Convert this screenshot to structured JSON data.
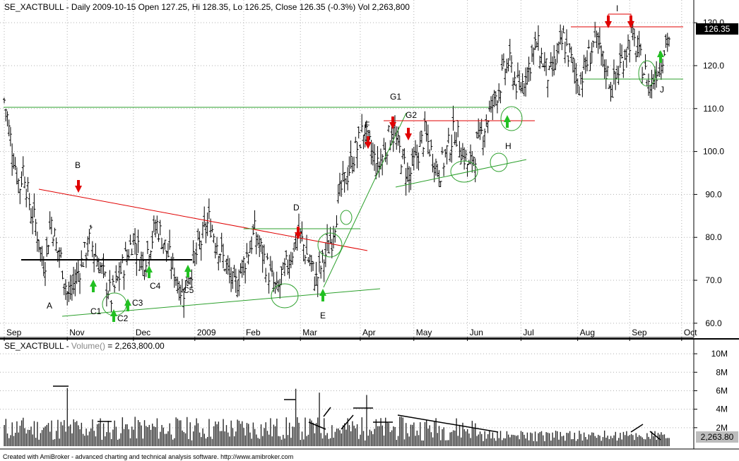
{
  "header": {
    "price_title": "SE_XACTBULL - Daily 2009-10-15 Open 127.25, Hi 128.35, Lo 126.25, Close 126.35 (-0.3%) Vol 2,263,800",
    "volume_title_prefix": "SE_XACTBULL - ",
    "volume_title_func": "Volume()",
    "volume_title_suffix": " = 2,263,800.00"
  },
  "price_badge": "126.35",
  "volume_badge": "2,263.80",
  "footer": "Created with AmiBroker - advanced charting and technical analysis software. http://www.amibroker.com",
  "colors": {
    "bars": "#000000",
    "support": "#2ca02c",
    "resistance": "#e00000",
    "arrow_up": "#22c022",
    "arrow_down": "#e00000",
    "volume_bars": "#2a2a2a",
    "grid": "#b0b0b0"
  },
  "chart_data": [
    {
      "type": "ohlc",
      "symbol": "SE_XACTBULL",
      "ylim": [
        58,
        132
      ],
      "y_ticks": [
        "130.0",
        "120.0",
        "110.0",
        "100.0",
        "90.0",
        "80.0",
        "70.0",
        "60.0"
      ],
      "y_tick_values": [
        130,
        120,
        110,
        100,
        90,
        80,
        70,
        60
      ],
      "x_tick_labels": [
        "Sep",
        "Nov",
        "Dec",
        "2009",
        "Feb",
        "Mar",
        "Apr",
        "May",
        "Jun",
        "Jul",
        "Aug",
        "Sep",
        "Oct"
      ],
      "x_tick_index": [
        0,
        40,
        82,
        121,
        152,
        188,
        226,
        260,
        294,
        328,
        364,
        397,
        430
      ],
      "closes": [
        112,
        110,
        108,
        105,
        103,
        101,
        99,
        97,
        95,
        93,
        92,
        94,
        96,
        95,
        92,
        90,
        88,
        86,
        85,
        84,
        83,
        81,
        79,
        77,
        75,
        74,
        75,
        77,
        80,
        82,
        84,
        82,
        80,
        78,
        77,
        76,
        75,
        73,
        71,
        69,
        67,
        66,
        67,
        68,
        69,
        70,
        71,
        72,
        73,
        74,
        75,
        76,
        77,
        78,
        79,
        80,
        78,
        77,
        76,
        75,
        74,
        73,
        72,
        71,
        70,
        69,
        68,
        67,
        66,
        67,
        68,
        69,
        70,
        71,
        72,
        73,
        74,
        75,
        76,
        77,
        78,
        79,
        80,
        79,
        78,
        77,
        76,
        75,
        74,
        75,
        76,
        77,
        78,
        79,
        80,
        81,
        82,
        83,
        82,
        81,
        80,
        79,
        78,
        77,
        76,
        75,
        74,
        73,
        72,
        71,
        70,
        69,
        68,
        67,
        68,
        69,
        70,
        71,
        72,
        73,
        74,
        75,
        76,
        77,
        78,
        79,
        80,
        81,
        82,
        83,
        84,
        83,
        82,
        81,
        80,
        79,
        78,
        77,
        76,
        75,
        74,
        73,
        72,
        71,
        70,
        69,
        68,
        69,
        70,
        71,
        72,
        73,
        74,
        75,
        76,
        77,
        78,
        79,
        80,
        81,
        80,
        79,
        78,
        77,
        76,
        75,
        74,
        73,
        72,
        71,
        70,
        69,
        68,
        67,
        68,
        69,
        70,
        71,
        72,
        73,
        74,
        75,
        76,
        77,
        78,
        79,
        80,
        81,
        80,
        79,
        78,
        77,
        76,
        75,
        74,
        73,
        72,
        71,
        70,
        71,
        72,
        73,
        74,
        75,
        76,
        77,
        78,
        79,
        80,
        82,
        84,
        86,
        88,
        90,
        91,
        92,
        93,
        94,
        95,
        96,
        97,
        98,
        99,
        100,
        101,
        102,
        103,
        104,
        105,
        104,
        103,
        102,
        101,
        100,
        99,
        98,
        97,
        96,
        97,
        98,
        99,
        100,
        101,
        102,
        103,
        104,
        105,
        104,
        103,
        102,
        101,
        100,
        99,
        98,
        97,
        96,
        95,
        94,
        95,
        96,
        97,
        98,
        99,
        100,
        101,
        102,
        103,
        104,
        103,
        102,
        101,
        100,
        99,
        98,
        97,
        96,
        95,
        96,
        97,
        98,
        99,
        100,
        101,
        102,
        103,
        104,
        105,
        104,
        103,
        102,
        101,
        100,
        99,
        98,
        97,
        96,
        97,
        98,
        99,
        100,
        101,
        102,
        103,
        104,
        105,
        106,
        107,
        108,
        109,
        110,
        111,
        112,
        113,
        114,
        115,
        116,
        117,
        118,
        119,
        120,
        121,
        120,
        119,
        118,
        117,
        116,
        115,
        114,
        115,
        116,
        117,
        118,
        119,
        120,
        121,
        122,
        123,
        124,
        125,
        124,
        123,
        122,
        121,
        120,
        119,
        118,
        117,
        118,
        119,
        120,
        121,
        122,
        123,
        124,
        125,
        126,
        125,
        124,
        123,
        122,
        121,
        120,
        119,
        118,
        117,
        116,
        117,
        118,
        119,
        120,
        121,
        122,
        123,
        124,
        125,
        126,
        125,
        124,
        123,
        122,
        121,
        120,
        119,
        118,
        117,
        116,
        115,
        116,
        117,
        118,
        119,
        120,
        121,
        122,
        123,
        124,
        125,
        126,
        127,
        126,
        125,
        124,
        123,
        122,
        121,
        120,
        119,
        118,
        117,
        116,
        115,
        116,
        117,
        118,
        119,
        120,
        121,
        122,
        123,
        124,
        125,
        126,
        126.35
      ],
      "last_close": 126.35,
      "annotations": [
        {
          "text": "A",
          "x_index": 20,
          "price": 64,
          "pos": "below-left"
        },
        {
          "text": "B",
          "x_index": 30,
          "price": 91,
          "pos": "above",
          "arrow": "down"
        },
        {
          "text": "C1",
          "x_index": 40,
          "price": 68,
          "pos": "below",
          "arrow": "up"
        },
        {
          "text": "C2",
          "x_index": 52,
          "price": 62,
          "pos": "below",
          "arrow": "up"
        },
        {
          "text": "C3",
          "x_index": 58,
          "price": 64,
          "pos": "below",
          "arrow": "up"
        },
        {
          "text": "C4",
          "x_index": 74,
          "price": 72,
          "pos": "below",
          "arrow": "up"
        },
        {
          "text": "C5",
          "x_index": 98,
          "price": 71,
          "pos": "below",
          "arrow": "up"
        },
        {
          "text": "D",
          "x_index": 165,
          "price": 80,
          "pos": "above",
          "arrow": "down"
        },
        {
          "text": "E",
          "x_index": 186,
          "price": 67,
          "pos": "below",
          "arrow": "up"
        },
        {
          "text": "F",
          "x_index": 212,
          "price": 99,
          "pos": "above",
          "arrow": "down"
        },
        {
          "text": "G1",
          "x_index": 226,
          "price": 105,
          "pos": "above",
          "arrow": "down"
        },
        {
          "text": "G2",
          "x_index": 238,
          "price": 103,
          "pos": "above",
          "arrow": "down"
        },
        {
          "text": "H",
          "x_index": 300,
          "price": 104,
          "pos": "below",
          "arrow": "up"
        },
        {
          "text": "I",
          "x_index": 368,
          "price": 126,
          "pos": "above",
          "arrow": "down"
        },
        {
          "text": "J",
          "x_index": 392,
          "price": 119,
          "pos": "below",
          "arrow": "up"
        }
      ]
    },
    {
      "type": "bar",
      "name": "Volume()",
      "y_ticks": [
        "10M",
        "8M",
        "6M",
        "4M",
        "2M"
      ],
      "y_tick_values": [
        10,
        8,
        6,
        4,
        2
      ],
      "ylim": [
        0,
        11
      ],
      "last_value": 2.2638,
      "unit": "M"
    }
  ]
}
